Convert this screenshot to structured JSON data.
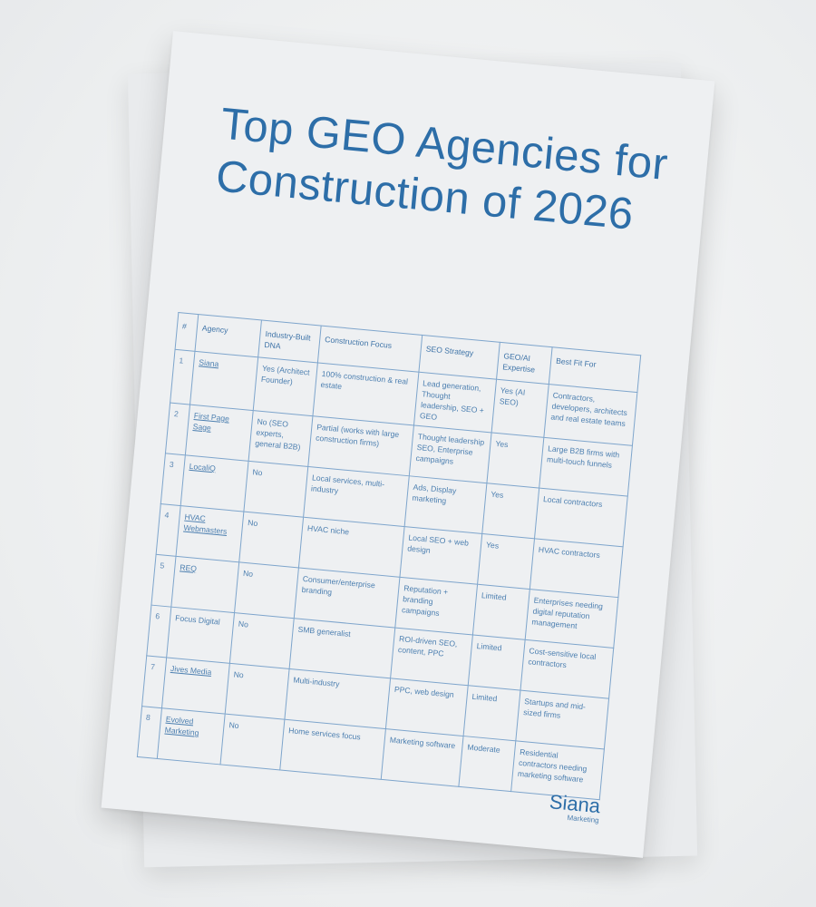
{
  "document": {
    "title": "Top GEO Agencies for Construction of 2026",
    "table": {
      "headers": [
        "#",
        "Agency",
        "Industry-Built DNA",
        "Construction Focus",
        "SEO Strategy",
        "GEO/AI Expertise",
        "Best Fit For"
      ],
      "rows": [
        [
          "1",
          "Siana",
          "Yes (Architect Founder)",
          "100% construction & real estate",
          "Lead generation, Thought leadership, SEO + GEO",
          "Yes (AI SEO)",
          "Contractors, developers, architects and real estate teams"
        ],
        [
          "2",
          "First Page Sage",
          "No (SEO experts, general B2B)",
          "Partial (works with large construction firms)",
          "Thought leadership SEO, Enterprise campaigns",
          "Yes",
          "Large B2B firms with multi-touch funnels"
        ],
        [
          "3",
          "LocaliQ",
          "No",
          "Local services, multi-industry",
          "Ads, Display marketing",
          "Yes",
          "Local contractors"
        ],
        [
          "4",
          "HVAC Webmasters",
          "No",
          "HVAC niche",
          "Local SEO + web design",
          "Yes",
          "HVAC contractors"
        ],
        [
          "5",
          "REQ",
          "No",
          "Consumer/enterprise branding",
          "Reputation + branding campaigns",
          "Limited",
          "Enterprises needing digital reputation management"
        ],
        [
          "6",
          "Focus Digital",
          "No",
          "SMB generalist",
          "ROI-driven SEO, content, PPC",
          "Limited",
          "Cost-sensitive local contractors"
        ],
        [
          "7",
          "Jives Media",
          "No",
          "Multi-industry",
          "PPC, web design",
          "Limited",
          "Startups and mid-sized firms"
        ],
        [
          "8",
          "Evolved Marketing",
          "No",
          "Home services focus",
          "Marketing software",
          "Moderate",
          "Residential contractors needing marketing software"
        ]
      ]
    },
    "logo": {
      "name": "Siana",
      "subtitle": "Marketing"
    }
  },
  "colors": {
    "accent": "#2d6ea8",
    "table_text": "#4c7fb0",
    "table_border": "#7ea5cc",
    "paper": "#eef0f2",
    "background": "#eceeef"
  }
}
